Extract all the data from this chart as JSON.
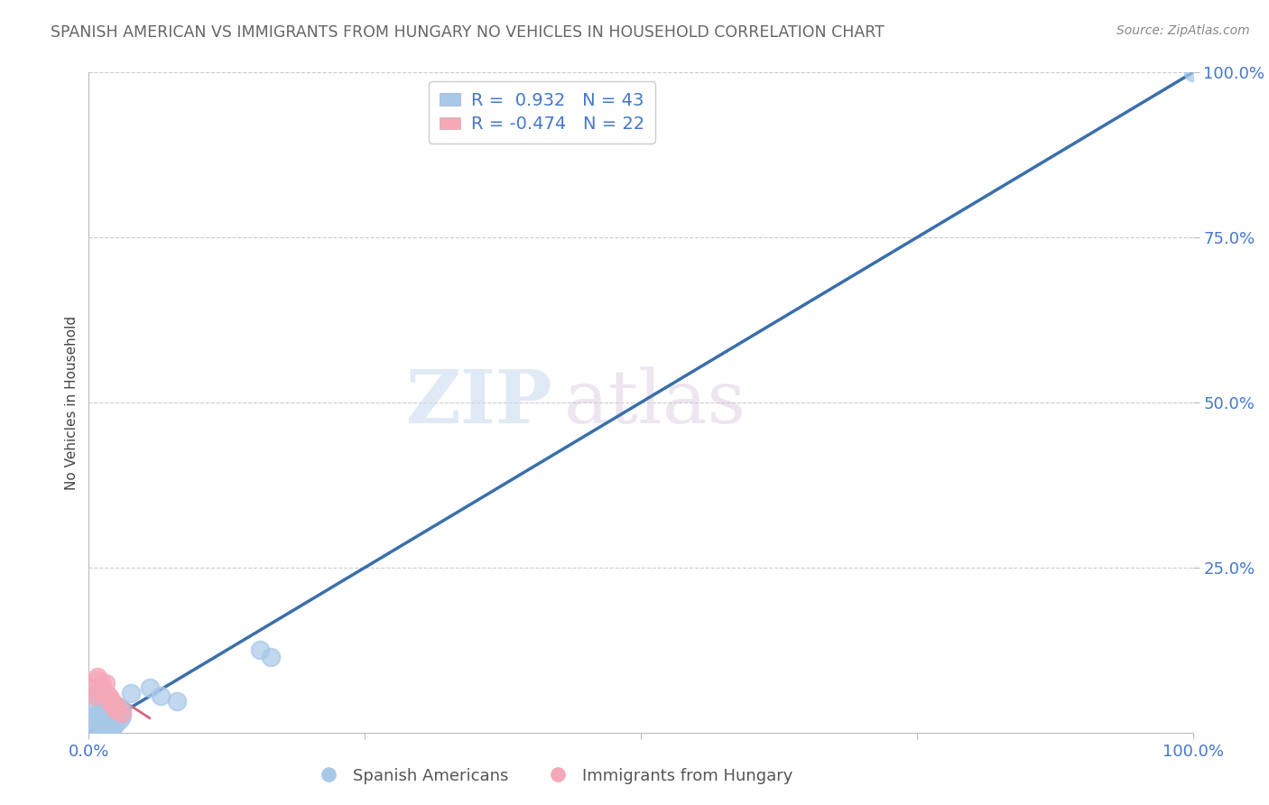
{
  "title": "SPANISH AMERICAN VS IMMIGRANTS FROM HUNGARY NO VEHICLES IN HOUSEHOLD CORRELATION CHART",
  "source": "Source: ZipAtlas.com",
  "ylabel": "No Vehicles in Household",
  "xlim": [
    0.0,
    1.0
  ],
  "ylim": [
    0.0,
    1.0
  ],
  "ytick_positions": [
    0.25,
    0.5,
    0.75,
    1.0
  ],
  "ytick_labels": [
    "25.0%",
    "50.0%",
    "75.0%",
    "100.0%"
  ],
  "grid_color": "#cccccc",
  "background_color": "#ffffff",
  "watermark_zip": "ZIP",
  "watermark_atlas": "atlas",
  "blue_r": 0.932,
  "blue_n": 43,
  "pink_r": -0.474,
  "pink_n": 22,
  "blue_scatter_color": "#a8c8e8",
  "pink_scatter_color": "#f4a8b8",
  "legend_blue_label": "Spanish Americans",
  "legend_pink_label": "Immigrants from Hungary",
  "blue_line_color": "#3a6faa",
  "pink_line_color": "#d06880",
  "title_color": "#666666",
  "axis_label_color": "#4477cc",
  "legend_text_color": "#4477cc",
  "blue_scatter_x": [
    0.005,
    0.008,
    0.01,
    0.012,
    0.015,
    0.018,
    0.02,
    0.022,
    0.025,
    0.008,
    0.01,
    0.015,
    0.02,
    0.025,
    0.012,
    0.018,
    0.008,
    0.01,
    0.015,
    0.02,
    0.025,
    0.03,
    0.008,
    0.012,
    0.018,
    0.022,
    0.028,
    0.01,
    0.015,
    0.02,
    0.005,
    0.008,
    0.012,
    0.018,
    0.025,
    0.03,
    0.038,
    0.055,
    0.065,
    0.08,
    0.155,
    0.165,
    1.0
  ],
  "blue_scatter_y": [
    0.005,
    0.008,
    0.01,
    0.015,
    0.012,
    0.018,
    0.02,
    0.008,
    0.015,
    0.025,
    0.02,
    0.015,
    0.03,
    0.018,
    0.022,
    0.012,
    0.03,
    0.025,
    0.02,
    0.035,
    0.028,
    0.025,
    0.04,
    0.035,
    0.03,
    0.025,
    0.02,
    0.05,
    0.045,
    0.04,
    0.055,
    0.06,
    0.05,
    0.045,
    0.04,
    0.035,
    0.06,
    0.068,
    0.055,
    0.048,
    0.125,
    0.115,
    1.0
  ],
  "pink_scatter_x": [
    0.005,
    0.008,
    0.01,
    0.012,
    0.015,
    0.018,
    0.02,
    0.022,
    0.025,
    0.008,
    0.01,
    0.015,
    0.02,
    0.025,
    0.012,
    0.018,
    0.008,
    0.01,
    0.015,
    0.02,
    0.025,
    0.03
  ],
  "pink_scatter_y": [
    0.055,
    0.065,
    0.07,
    0.06,
    0.075,
    0.055,
    0.045,
    0.04,
    0.035,
    0.08,
    0.07,
    0.06,
    0.05,
    0.04,
    0.075,
    0.055,
    0.085,
    0.065,
    0.055,
    0.045,
    0.035,
    0.03
  ],
  "blue_line_x": [
    0.0,
    1.0
  ],
  "blue_line_y": [
    0.0,
    1.0
  ],
  "pink_line_x": [
    0.0,
    0.055
  ],
  "pink_line_y": [
    0.082,
    0.022
  ]
}
